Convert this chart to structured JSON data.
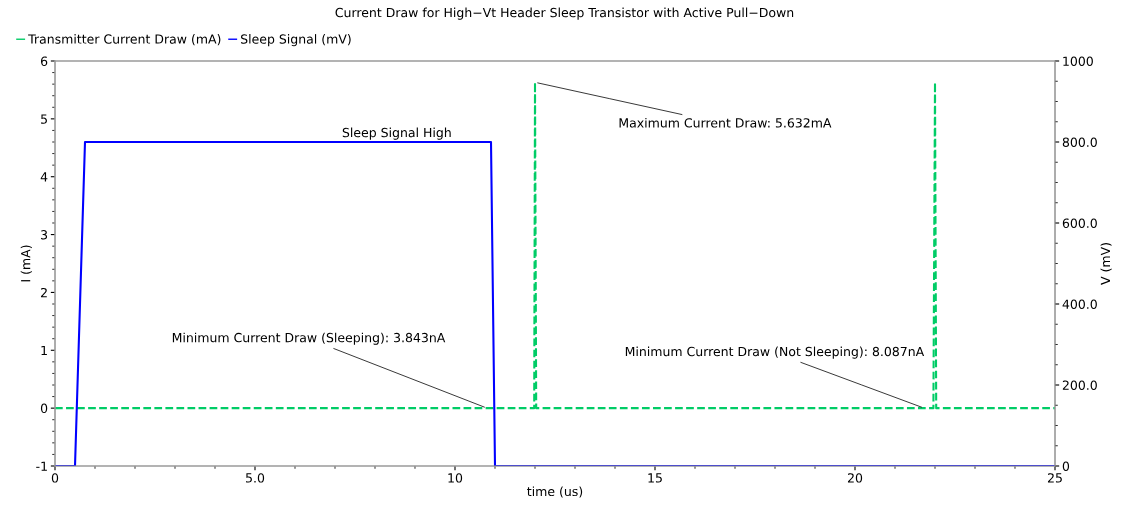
{
  "chart_data": {
    "type": "line",
    "title": "Current Draw for High−Vt Header Sleep Transistor with Active Pull−Down",
    "xlabel": "time (us)",
    "ylabel": "I (mA)",
    "y2label": "V (mV)",
    "series": [
      {
        "name": "Transmitter Current Draw (mA)",
        "color": "#00cc66",
        "line_style": "dashed",
        "x": [
          0,
          11.98,
          12.0,
          12.03,
          21.96,
          22.0,
          22.03,
          25
        ],
        "values": [
          0,
          0,
          5.632,
          0,
          0,
          5.63,
          0,
          0
        ]
      },
      {
        "name": "Sleep Signal (mV)",
        "color": "#0000ff",
        "axis": "y2",
        "line_style": "solid",
        "x": [
          0,
          0.5,
          0.75,
          10.9,
          11.0,
          25
        ],
        "values": [
          0,
          0,
          800,
          800,
          0,
          0
        ]
      }
    ],
    "xlim": [
      0,
      25
    ],
    "xticks": [
      0,
      {
        "value": 5,
        "label": "5.0"
      },
      10,
      15,
      20,
      25
    ],
    "ylim": [
      -1,
      6
    ],
    "yticks": [
      -1,
      0,
      1,
      2,
      3,
      4,
      5,
      6
    ],
    "y2lim": [
      0,
      1000
    ],
    "y2ticks": [
      0,
      {
        "value": 200,
        "label": "200.0"
      },
      {
        "value": 400,
        "label": "400.0"
      },
      {
        "value": 600,
        "label": "600.0"
      },
      {
        "value": 800,
        "label": "800.0"
      },
      1000
    ],
    "annotations": [
      {
        "text": "Sleep Signal High",
        "x": 7.0,
        "y": 4.6
      },
      {
        "text": "Maximum Current Draw: 5.632mA",
        "x": 12.0,
        "y": 5.632
      },
      {
        "text": "Minimum Current Draw (Sleeping): 3.843nA",
        "x": 10.8,
        "y": 0
      },
      {
        "text": "Minimum Current Draw (Not Sleeping): 8.087nA",
        "x": 21.73,
        "y": 0
      }
    ],
    "grid": false,
    "legend": "top left",
    "marker": "none"
  }
}
